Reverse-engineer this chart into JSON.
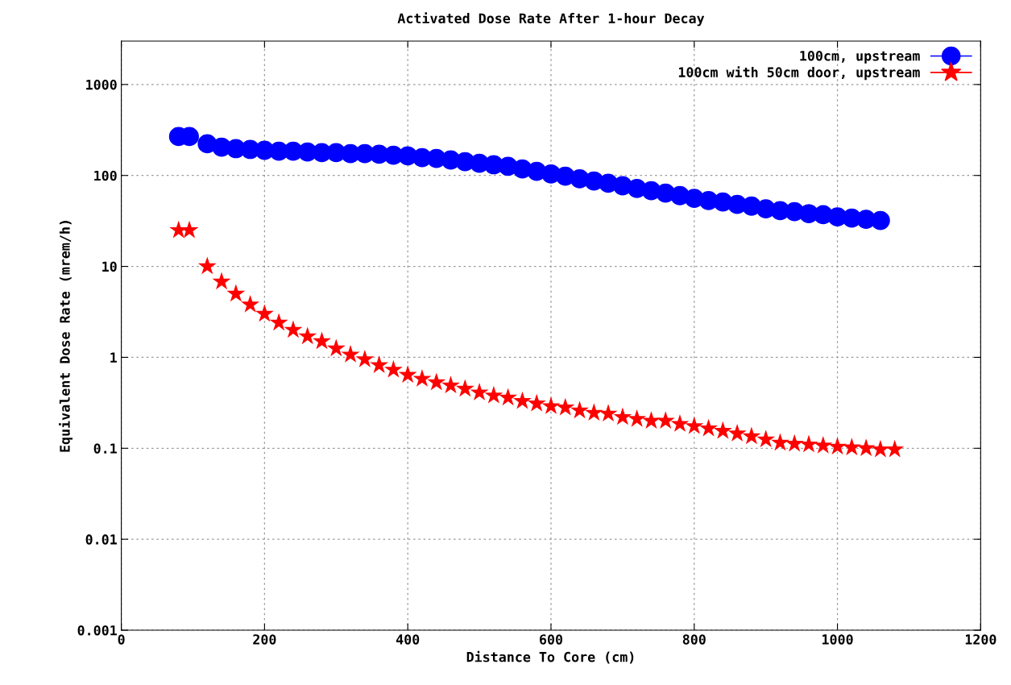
{
  "chart_data": {
    "type": "scatter",
    "title": "Activated Dose Rate After 1-hour Decay",
    "xlabel": "Distance To Core (cm)",
    "ylabel": "Equivalent Dose Rate (mrem/h)",
    "log": "y",
    "grid": true,
    "legend": "top right",
    "xlim": [
      0,
      1200
    ],
    "xticks": [
      0,
      200,
      400,
      600,
      800,
      1000,
      1200
    ],
    "ylim": [
      0.001,
      3000
    ],
    "yticks": [
      0.001,
      0.01,
      0.1,
      1,
      10,
      100,
      1000
    ],
    "series": [
      {
        "name": "100cm, upstream",
        "color": "#0000ff",
        "marker": "circle",
        "x": [
          80,
          95,
          120,
          140,
          160,
          180,
          200,
          220,
          240,
          260,
          280,
          300,
          320,
          340,
          360,
          380,
          400,
          420,
          440,
          460,
          480,
          500,
          520,
          540,
          560,
          580,
          600,
          620,
          640,
          660,
          680,
          700,
          720,
          740,
          760,
          780,
          800,
          820,
          840,
          860,
          880,
          900,
          920,
          940,
          960,
          980,
          1000,
          1020,
          1040,
          1060
        ],
        "values": [
          268,
          268,
          223,
          205,
          197,
          193,
          189,
          185,
          185,
          181,
          178,
          178,
          174,
          174,
          171,
          167,
          164,
          157,
          154,
          148,
          142,
          136,
          131,
          126,
          118,
          111,
          104,
          98,
          92,
          87,
          82,
          77,
          72,
          68,
          64,
          60,
          56,
          53,
          51,
          48,
          46,
          43,
          41,
          40,
          38,
          37,
          35,
          34,
          33,
          32
        ]
      },
      {
        "name": "100cm with 50cm door, upstream",
        "color": "#ff0000",
        "marker": "star",
        "x": [
          80,
          95,
          120,
          140,
          160,
          180,
          200,
          220,
          240,
          260,
          280,
          300,
          320,
          340,
          360,
          380,
          400,
          420,
          440,
          460,
          480,
          500,
          520,
          540,
          560,
          580,
          600,
          620,
          640,
          660,
          680,
          700,
          720,
          740,
          760,
          780,
          800,
          820,
          840,
          860,
          880,
          900,
          920,
          940,
          960,
          980,
          1000,
          1020,
          1040,
          1060,
          1080
        ],
        "values": [
          25,
          25,
          10,
          6.8,
          5,
          3.8,
          3.0,
          2.4,
          2.0,
          1.7,
          1.5,
          1.25,
          1.07,
          0.95,
          0.82,
          0.73,
          0.64,
          0.58,
          0.53,
          0.49,
          0.45,
          0.41,
          0.38,
          0.36,
          0.33,
          0.31,
          0.29,
          0.28,
          0.26,
          0.245,
          0.24,
          0.22,
          0.21,
          0.2,
          0.2,
          0.185,
          0.175,
          0.165,
          0.155,
          0.145,
          0.135,
          0.125,
          0.115,
          0.112,
          0.11,
          0.107,
          0.104,
          0.102,
          0.1,
          0.097,
          0.097
        ]
      }
    ]
  }
}
